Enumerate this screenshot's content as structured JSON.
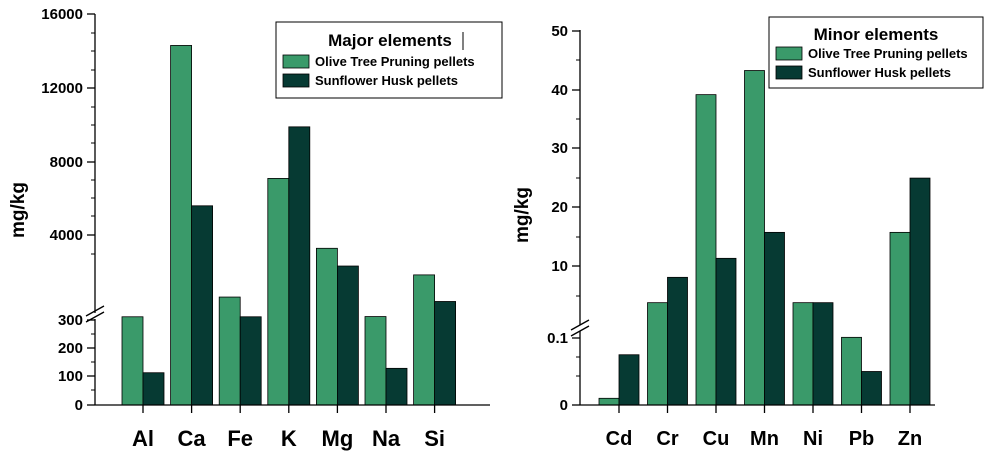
{
  "colors": {
    "olive": "#3a9a6a",
    "sunflower": "#063a33",
    "axis": "#000000"
  },
  "chart_data": [
    {
      "type": "bar",
      "ylabel": "mg/kg",
      "legend": {
        "title": "Major elements",
        "placement": "top-right"
      },
      "axis": "broken",
      "lower_ticks": [
        "0",
        "100",
        "200",
        "300"
      ],
      "upper_ticks": [
        "4000",
        "8000",
        "12000",
        "16000"
      ],
      "categories": [
        "Al",
        "Ca",
        "Fe",
        "K",
        "Mg",
        "Na",
        "Si"
      ],
      "series": [
        {
          "name": "Olive Tree Pruning pellets",
          "values": [
            310,
            14300,
            1200,
            7100,
            3400,
            320,
            2200
          ]
        },
        {
          "name": "Sunflower Husk pellets",
          "values": [
            110,
            5600,
            310,
            9900,
            2600,
            125,
            1000
          ]
        }
      ]
    },
    {
      "type": "bar",
      "ylabel": "mg/kg",
      "legend": {
        "title": "Minor elements",
        "placement": "top-right"
      },
      "axis": "broken",
      "lower_ticks": [
        "0",
        "0.1"
      ],
      "upper_ticks": [
        "10",
        "20",
        "30",
        "40",
        "50"
      ],
      "categories": [
        "Cd",
        "Cr",
        "Cu",
        "Mn",
        "Ni",
        "Pb",
        "Zn"
      ],
      "series": [
        {
          "name": "Olive Tree Pruning pellets",
          "values": [
            0.01,
            4.5,
            39.2,
            43.3,
            4.5,
            0.15,
            15.7
          ]
        },
        {
          "name": "Sunflower Husk pellets",
          "values": [
            0.075,
            8.3,
            11.3,
            15.7,
            4.5,
            0.05,
            24.9
          ]
        }
      ]
    }
  ]
}
